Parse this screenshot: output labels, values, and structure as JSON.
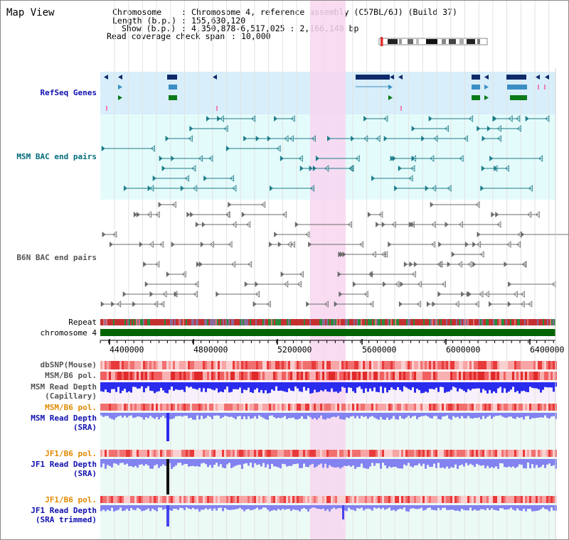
{
  "app": {
    "title": "Map View"
  },
  "info": {
    "chromosome_label": "Chromosome",
    "chromosome_value": "Chromosome 4, reference assembly (C57BL/6J) (Build 37)",
    "length_label": "Length (b.p.)",
    "length_value": "155,630,120",
    "show_label": "Show (b.p.)",
    "show_value": "4,350,878-6,517,025 : 2,166,148 bp",
    "coverage_label": "Read coverage check span",
    "coverage_value": "10,000"
  },
  "tracks": {
    "refseq": "RefSeq Genes",
    "msm_bac": "MSM BAC end pairs",
    "b6n_bac": "B6N BAC end pairs",
    "repeat": "Repeat",
    "chromosome": "chromosome 4",
    "dbsnp": "dbSNP(Mouse)",
    "msm_b6_pol_1": "MSM/B6 pol.",
    "msm_depth_cap_1": "MSM Read Depth",
    "msm_depth_cap_2": "(Capillary)",
    "msm_b6_pol_2": "MSM/B6 pol.",
    "msm_depth_sra_1": "MSM Read Depth",
    "msm_depth_sra_2": "(SRA)",
    "jf1_b6_pol_1": "JF1/B6 pol.",
    "jf1_depth_sra_1": "JF1 Read Depth",
    "jf1_depth_sra_2": "(SRA)",
    "jf1_b6_pol_2": "JF1/B6 pol.",
    "jf1_depth_trim_1": "JF1 Read Depth",
    "jf1_depth_trim_2": "(SRA trimmed)"
  },
  "scale": {
    "ticks": [
      "4400000",
      "4800000",
      "5200000",
      "5600000",
      "6000000",
      "6400000"
    ]
  },
  "colors": {
    "refseq_bg": "#d8eefa",
    "msm_bg": "#e4fbfb",
    "highlight": "#f8d6f0",
    "label_blue": "#1010b0",
    "label_teal": "#006b7a",
    "label_gray": "#555555",
    "label_orange": "#e08a00",
    "chromosome_green": "#006400",
    "depth_blue": "#2b2bee",
    "sra_blue": "#8282f0"
  }
}
